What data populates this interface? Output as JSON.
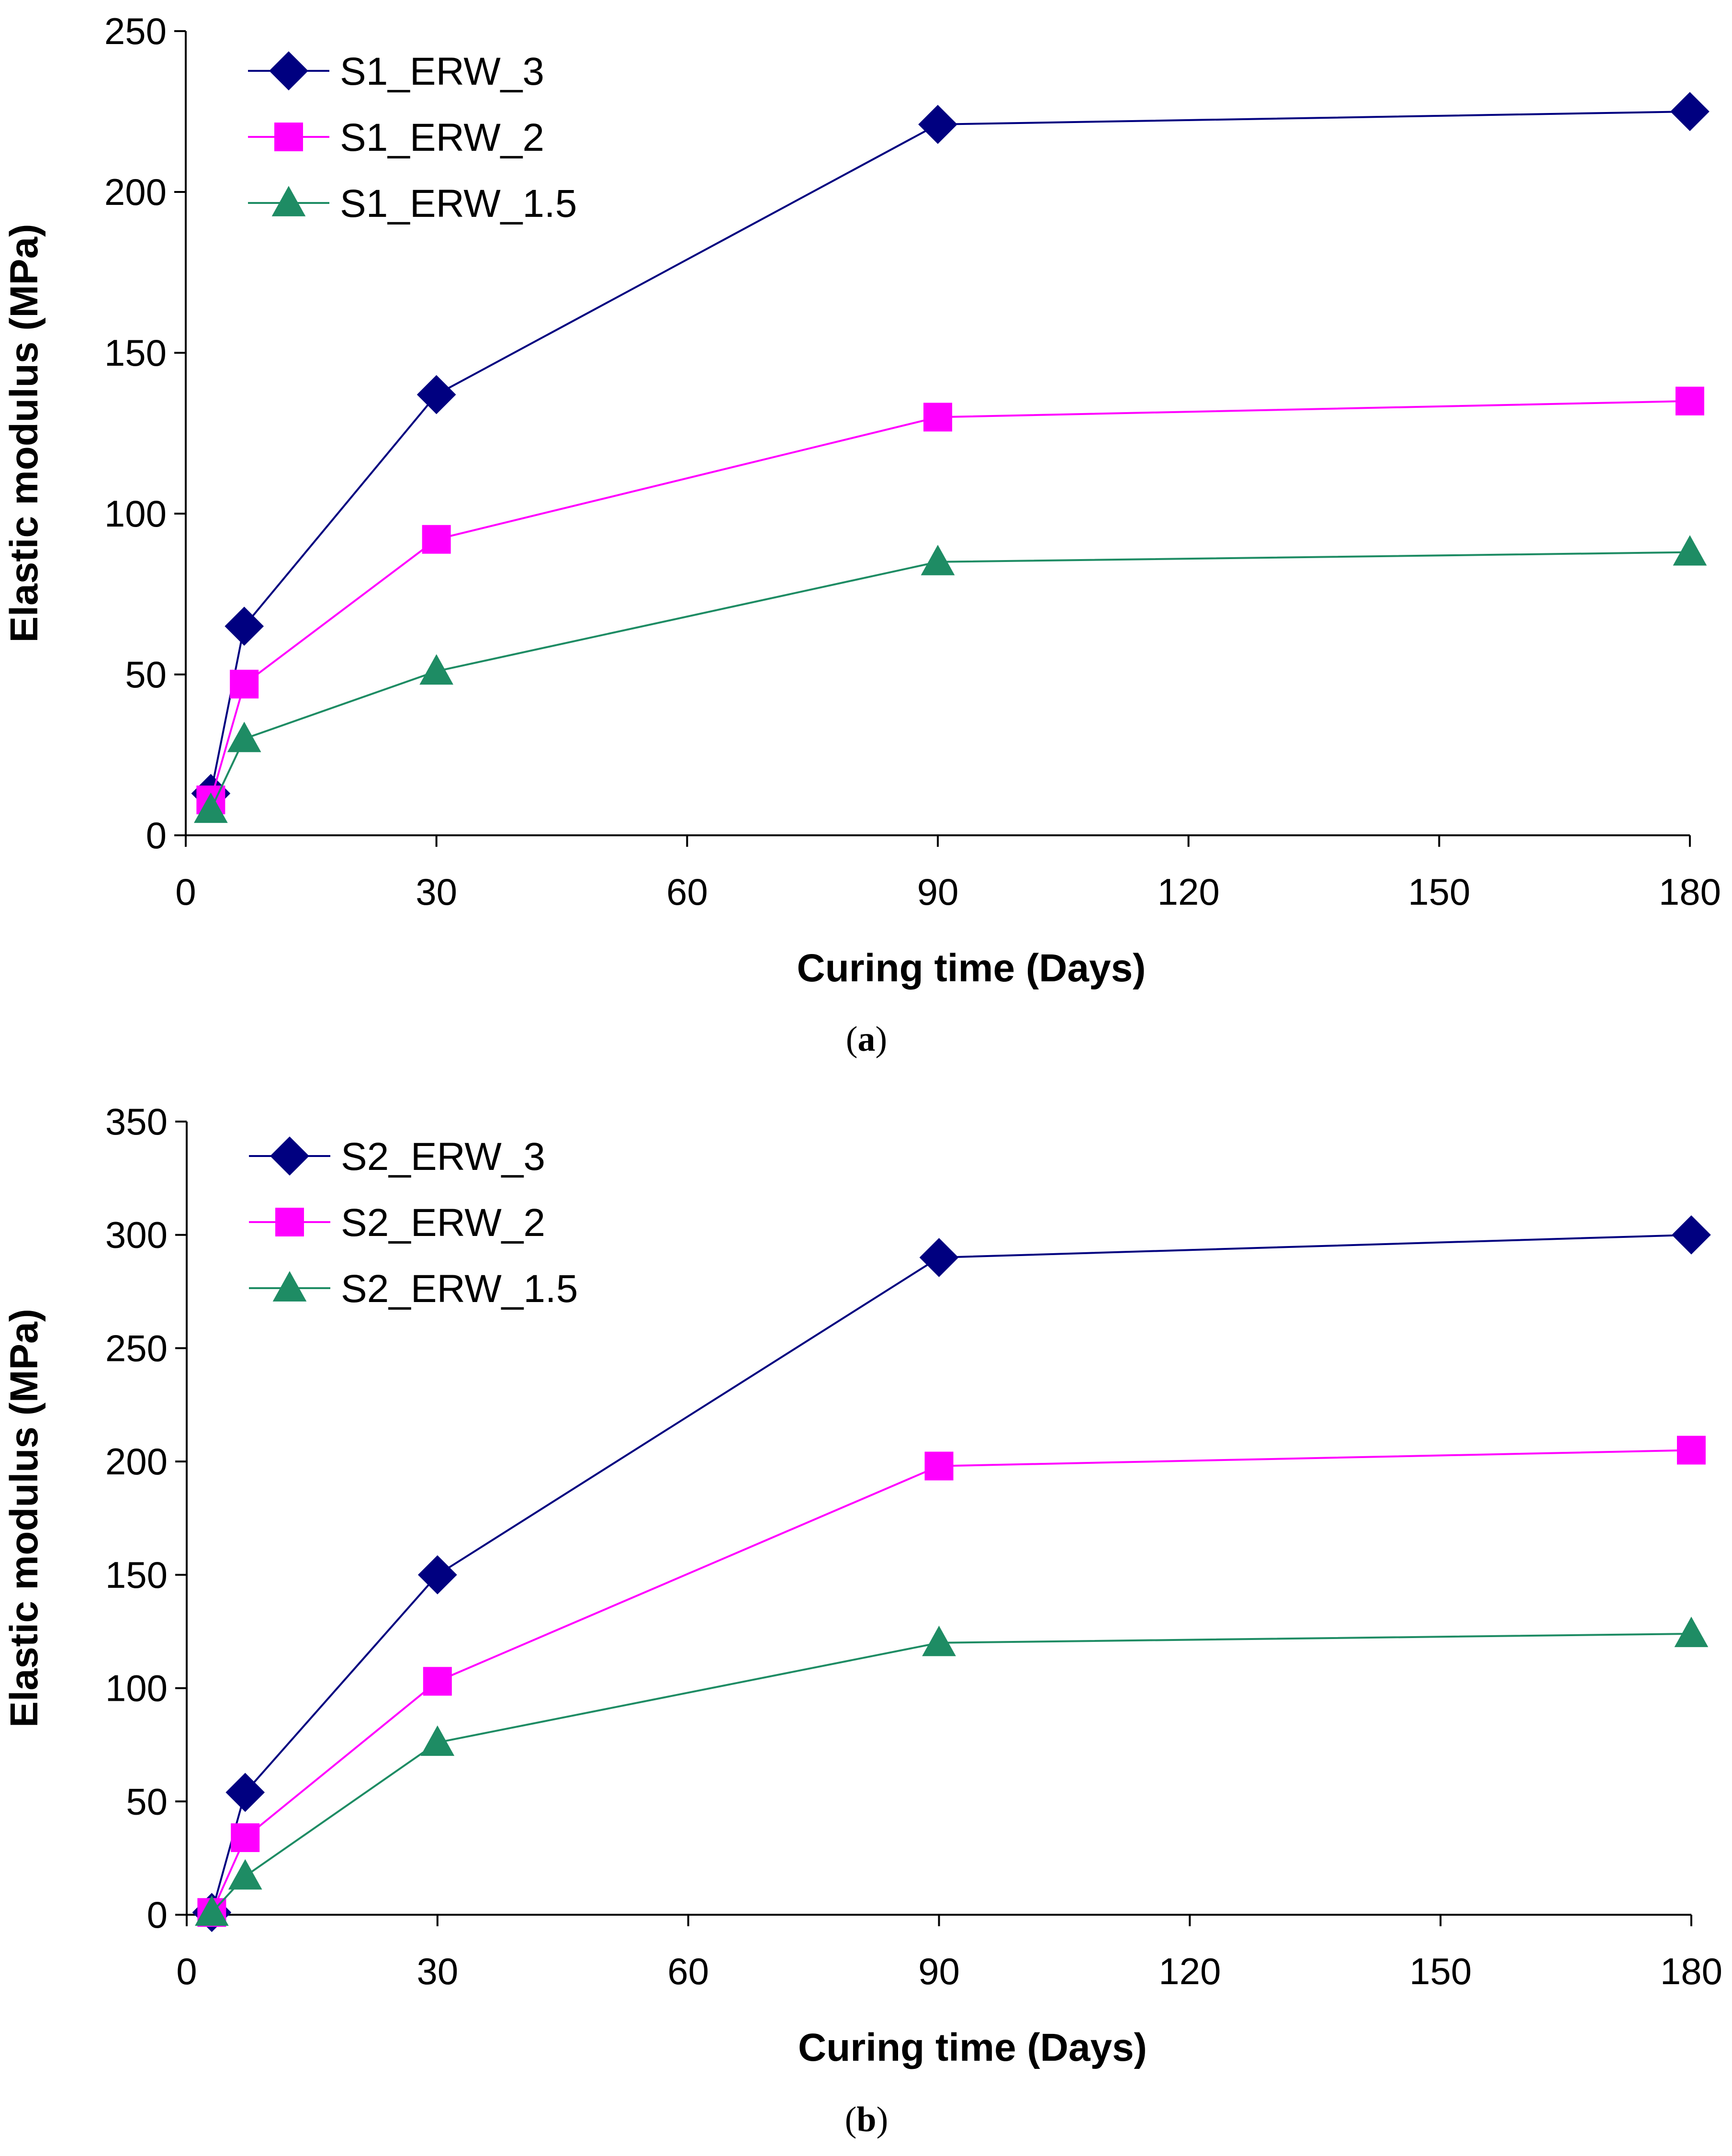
{
  "chart_data": [
    {
      "type": "line",
      "caption_letter": "a",
      "xlabel": "Curing time (Days)",
      "ylabel": "Elastic modulus (MPa)",
      "xlim": [
        0,
        180
      ],
      "ylim": [
        0,
        250
      ],
      "xticks": [
        "0",
        "30",
        "60",
        "90",
        "120",
        "150",
        "180"
      ],
      "yticks": [
        "0",
        "50",
        "100",
        "150",
        "200",
        "250"
      ],
      "legend_position": "top-left",
      "series": [
        {
          "name": "S1_ERW_3",
          "color": "#000080",
          "marker": "diamond",
          "x": [
            3,
            7,
            30,
            90,
            180
          ],
          "values": [
            13,
            65,
            137,
            221,
            225
          ]
        },
        {
          "name": "S1_ERW_2",
          "color": "#FF00FF",
          "marker": "square",
          "x": [
            3,
            7,
            30,
            90,
            180
          ],
          "values": [
            11,
            47,
            92,
            130,
            135
          ]
        },
        {
          "name": "S1_ERW_1.5",
          "color": "#1E8C64",
          "marker": "triangle",
          "x": [
            3,
            7,
            30,
            90,
            180
          ],
          "values": [
            8,
            30,
            51,
            85,
            88
          ]
        }
      ]
    },
    {
      "type": "line",
      "caption_letter": "b",
      "xlabel": "Curing time (Days)",
      "ylabel": "Elastic modulus (MPa)",
      "xlim": [
        0,
        180
      ],
      "ylim": [
        0,
        350
      ],
      "xticks": [
        "0",
        "30",
        "60",
        "90",
        "120",
        "150",
        "180"
      ],
      "yticks": [
        "0",
        "50",
        "100",
        "150",
        "200",
        "250",
        "300",
        "350"
      ],
      "legend_position": "top-left",
      "series": [
        {
          "name": "S2_ERW_3",
          "color": "#000080",
          "marker": "diamond",
          "x": [
            3,
            7,
            30,
            90,
            180
          ],
          "values": [
            1,
            54,
            150,
            290,
            300
          ]
        },
        {
          "name": "S2_ERW_2",
          "color": "#FF00FF",
          "marker": "square",
          "x": [
            3,
            7,
            30,
            90,
            180
          ],
          "values": [
            1,
            34,
            103,
            198,
            205
          ]
        },
        {
          "name": "S2_ERW_1.5",
          "color": "#1E8C64",
          "marker": "triangle",
          "x": [
            3,
            7,
            30,
            90,
            180
          ],
          "values": [
            1,
            17,
            76,
            120,
            124
          ]
        }
      ]
    }
  ]
}
